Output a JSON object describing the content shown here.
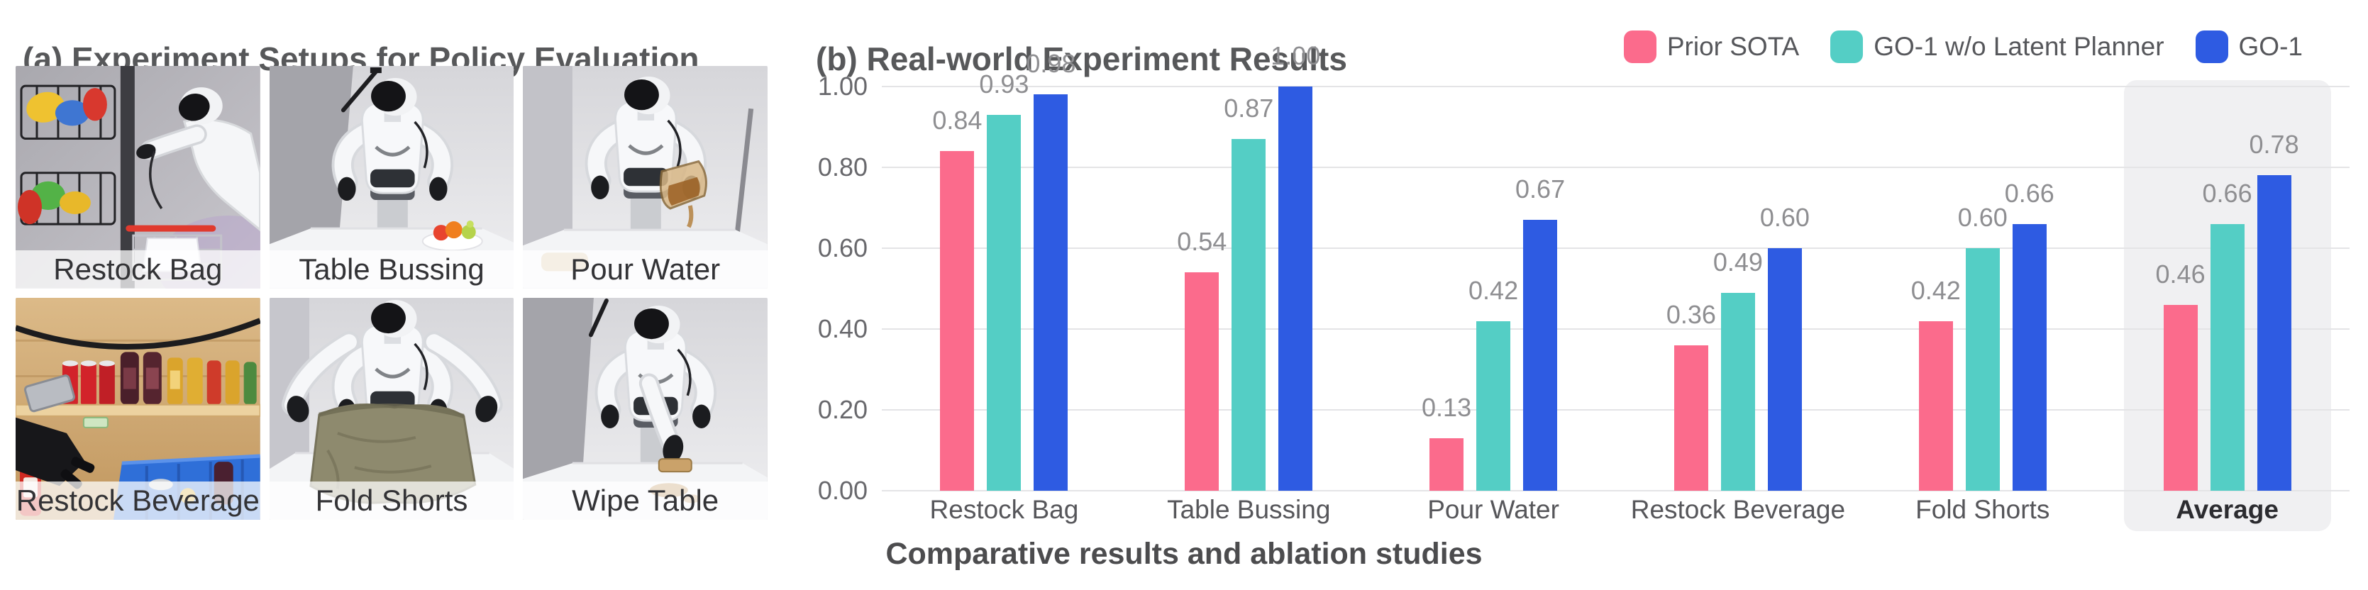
{
  "panel_a": {
    "title": "(a) Experiment Setups for Policy Evaluation",
    "photos": [
      {
        "label": "Restock Bag"
      },
      {
        "label": "Table Bussing"
      },
      {
        "label": "Pour Water"
      },
      {
        "label": "Restock Beverage"
      },
      {
        "label": "Fold Shorts"
      },
      {
        "label": "Wipe Table"
      }
    ]
  },
  "panel_b": {
    "title": "(b) Real-world Experiment Results"
  },
  "chart_data": {
    "type": "bar",
    "title": "(b) Real-world Experiment Results",
    "categories": [
      "Restock Bag",
      "Table Bussing",
      "Pour Water",
      "Restock Beverage",
      "Fold Shorts",
      "Average"
    ],
    "series": [
      {
        "name": "Prior SOTA",
        "color": "#FB6B8C",
        "values": [
          0.84,
          0.54,
          0.13,
          0.36,
          0.42,
          0.46
        ]
      },
      {
        "name": "GO-1 w/o Latent Planner",
        "color": "#54CEC5",
        "values": [
          0.93,
          0.87,
          0.42,
          0.49,
          0.6,
          0.66
        ]
      },
      {
        "name": "GO-1",
        "color": "#2E5BE2",
        "values": [
          0.98,
          1.0,
          0.67,
          0.6,
          0.66,
          0.78
        ]
      }
    ],
    "ylim": [
      0,
      1.0
    ],
    "yticks": [
      {
        "label": "0.00",
        "value": 0.0
      },
      {
        "label": "0.20",
        "value": 0.2
      },
      {
        "label": "0.40",
        "value": 0.4
      },
      {
        "label": "0.60",
        "value": 0.6
      },
      {
        "label": "0.80",
        "value": 0.8
      },
      {
        "label": "1.00",
        "value": 1.0
      }
    ],
    "grid": true,
    "legend_position": "top-right",
    "value_labels": true,
    "highlight_category": "Average",
    "highlight_color": "#f0f0f2"
  },
  "caption": "Comparative results and ablation studies"
}
